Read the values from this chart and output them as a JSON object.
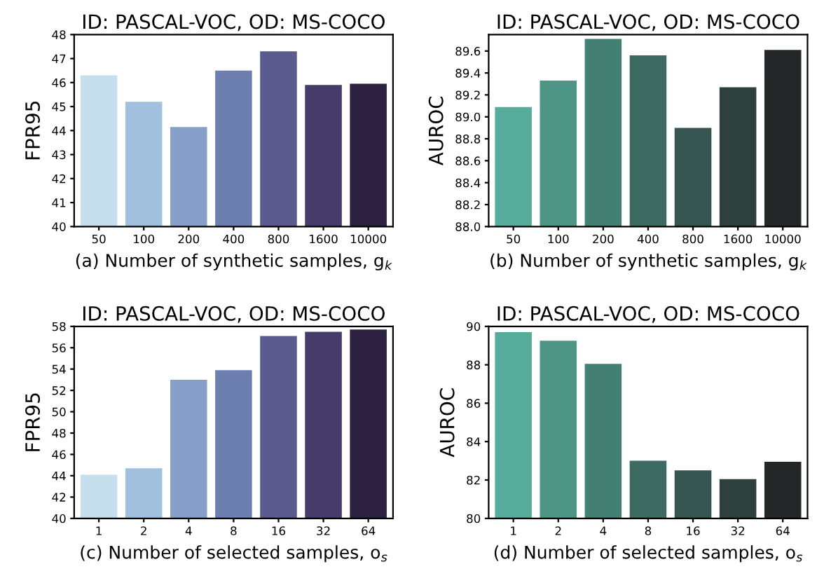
{
  "chart_data": [
    {
      "type": "bar",
      "title": "ID: PASCAL-VOC, OD: MS-COCO",
      "xlabel": "(a) Number of synthetic samples, g$_{k}$",
      "ylabel": "FPR95",
      "categories": [
        "50",
        "100",
        "200",
        "400",
        "800",
        "1600",
        "10000"
      ],
      "values": [
        46.3,
        45.2,
        44.15,
        46.5,
        47.3,
        45.9,
        45.95
      ],
      "colors": [
        "#c6dfec",
        "#a1c0dd",
        "#87a0c9",
        "#6d7fb0",
        "#5b5b8f",
        "#463b6b",
        "#2b203f"
      ],
      "ylim": [
        40,
        48
      ],
      "yticks": [
        40,
        41,
        42,
        43,
        44,
        45,
        46,
        47,
        48
      ],
      "grid": false
    },
    {
      "type": "bar",
      "title": "ID: PASCAL-VOC, OD: MS-COCO",
      "xlabel": "(b) Number of synthetic samples, g$_{k}$",
      "ylabel": "AUROC",
      "categories": [
        "50",
        "100",
        "200",
        "400",
        "800",
        "1600",
        "10000"
      ],
      "values": [
        89.09,
        89.33,
        89.71,
        89.56,
        88.9,
        89.27,
        89.61
      ],
      "colors": [
        "#56ab9a",
        "#4d9585",
        "#447f74",
        "#3d6a61",
        "#345550",
        "#2d403c",
        "#232728"
      ],
      "ylim": [
        88.0,
        89.75
      ],
      "yticks": [
        {
          "value": 88.0,
          "label": "88.0"
        },
        {
          "value": 88.2,
          "label": "88.2"
        },
        {
          "value": 88.4,
          "label": "88.4"
        },
        {
          "value": 88.6,
          "label": "88.6"
        },
        {
          "value": 88.8,
          "label": "88.8"
        },
        {
          "value": 89.0,
          "label": "89.0"
        },
        {
          "value": 89.2,
          "label": "89.2"
        },
        {
          "value": 89.4,
          "label": "89.4"
        },
        {
          "value": 89.6,
          "label": "89.6"
        }
      ],
      "grid": false
    },
    {
      "type": "bar",
      "title": "ID: PASCAL-VOC, OD: MS-COCO",
      "xlabel": "(c) Number of selected samples, o$_{s}$",
      "ylabel": "FPR95",
      "categories": [
        "1",
        "2",
        "4",
        "8",
        "16",
        "32",
        "64"
      ],
      "values": [
        44.1,
        44.7,
        53.0,
        53.9,
        57.1,
        57.5,
        57.7
      ],
      "colors": [
        "#c6dfec",
        "#a1c0dd",
        "#87a0c9",
        "#6d7fb0",
        "#5b5b8f",
        "#463b6b",
        "#2b203f"
      ],
      "ylim": [
        40,
        58
      ],
      "yticks": [
        40,
        42,
        44,
        46,
        48,
        50,
        52,
        54,
        56,
        58
      ],
      "grid": false
    },
    {
      "type": "bar",
      "title": "ID: PASCAL-VOC, OD: MS-COCO",
      "xlabel": "(d) Number of selected samples, o$_{s}$",
      "ylabel": "AUROC",
      "categories": [
        "1",
        "2",
        "4",
        "8",
        "16",
        "32",
        "64"
      ],
      "values": [
        89.7,
        89.25,
        88.05,
        83.0,
        82.5,
        82.05,
        82.95
      ],
      "colors": [
        "#56ab9a",
        "#4d9585",
        "#447f74",
        "#3d6a61",
        "#345550",
        "#2d403c",
        "#232728"
      ],
      "ylim": [
        80,
        90
      ],
      "yticks": [
        80,
        82,
        84,
        86,
        88,
        90
      ],
      "grid": false
    }
  ]
}
